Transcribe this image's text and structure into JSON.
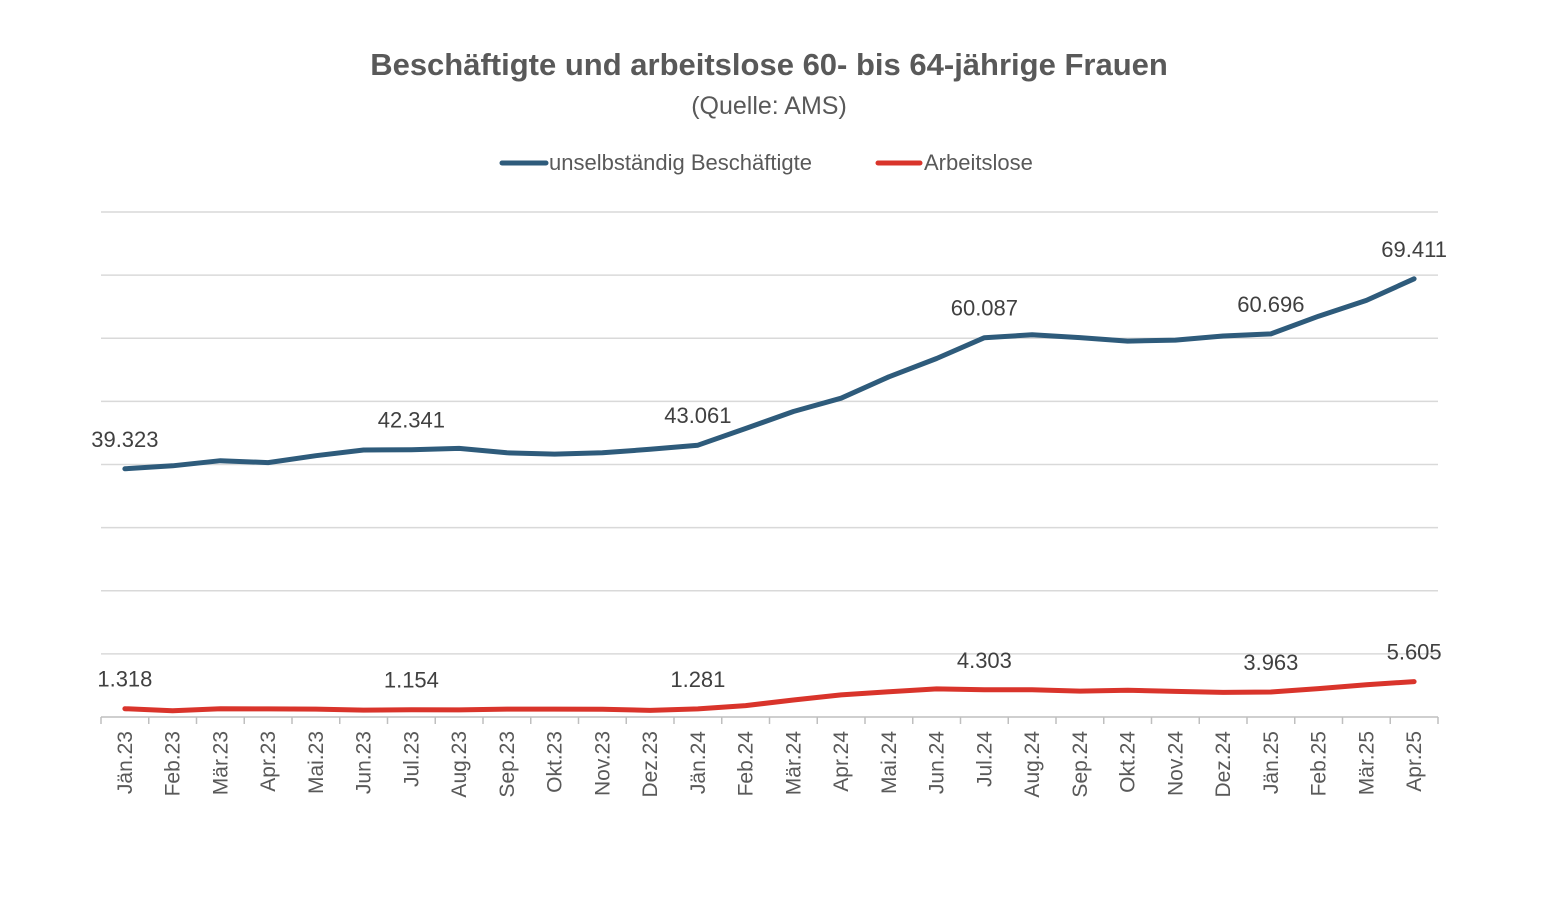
{
  "chart_data": {
    "type": "line",
    "title": "Beschäftigte und arbeitslose 60- bis 64-jährige Frauen",
    "subtitle": "(Quelle: AMS)",
    "xlabel": "",
    "ylabel": "",
    "ylim": [
      0,
      80000
    ],
    "y_gridlines": [
      10000,
      20000,
      30000,
      40000,
      50000,
      60000,
      70000,
      80000
    ],
    "grid": true,
    "legend_position": "top",
    "categories": [
      "Jän.23",
      "Feb.23",
      "Mär.23",
      "Apr.23",
      "Mai.23",
      "Jun.23",
      "Jul.23",
      "Aug.23",
      "Sep.23",
      "Okt.23",
      "Nov.23",
      "Dez.23",
      "Jän.24",
      "Feb.24",
      "Mär.24",
      "Apr.24",
      "Mai.24",
      "Jun.24",
      "Jul.24",
      "Aug.24",
      "Sep.24",
      "Okt.24",
      "Nov.24",
      "Dez.24",
      "Jän.25",
      "Feb.25",
      "Mär.25",
      "Apr.25"
    ],
    "series": [
      {
        "name": "unselbständig Beschäftigte",
        "color": "#2e5b7b",
        "values": [
          39323,
          39800,
          40600,
          40300,
          41400,
          42300,
          42341,
          42550,
          41850,
          41650,
          41850,
          42400,
          43061,
          45700,
          48400,
          50500,
          53900,
          56800,
          60087,
          60550,
          60100,
          59550,
          59700,
          60350,
          60696,
          63500,
          66000,
          69411
        ],
        "labeled_points": [
          {
            "index": 0,
            "label": "39.323"
          },
          {
            "index": 6,
            "label": "42.341"
          },
          {
            "index": 12,
            "label": "43.061"
          },
          {
            "index": 18,
            "label": "60.087"
          },
          {
            "index": 24,
            "label": "60.696"
          },
          {
            "index": 27,
            "label": "69.411"
          }
        ]
      },
      {
        "name": "Arbeitslose",
        "color": "#d9342b",
        "values": [
          1318,
          1000,
          1300,
          1280,
          1250,
          1100,
          1154,
          1120,
          1250,
          1250,
          1230,
          1050,
          1281,
          1800,
          2700,
          3500,
          4000,
          4450,
          4303,
          4320,
          4100,
          4250,
          4050,
          3900,
          3963,
          4500,
          5100,
          5605
        ],
        "labeled_points": [
          {
            "index": 0,
            "label": "1.318"
          },
          {
            "index": 6,
            "label": "1.154"
          },
          {
            "index": 12,
            "label": "1.281"
          },
          {
            "index": 18,
            "label": "4.303"
          },
          {
            "index": 24,
            "label": "3.963"
          },
          {
            "index": 27,
            "label": "5.605"
          }
        ]
      }
    ]
  }
}
